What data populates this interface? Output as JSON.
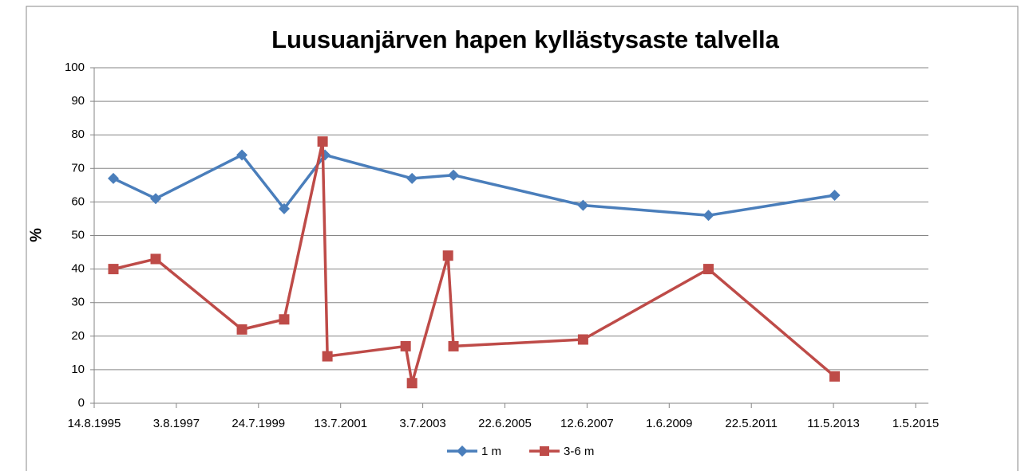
{
  "chart_data": {
    "type": "line",
    "title": "Luusuanjärven hapen kyllästysaste talvella",
    "y_label": "%",
    "xlim": [
      "1995-08-14",
      "2015-05-01"
    ],
    "xticks": [
      {
        "value": "1995-08-14",
        "label": "14.8.1995"
      },
      {
        "value": "1997-08-03",
        "label": "3.8.1997"
      },
      {
        "value": "1999-07-24",
        "label": "24.7.1999"
      },
      {
        "value": "2001-07-13",
        "label": "13.7.2001"
      },
      {
        "value": "2003-07-03",
        "label": "3.7.2003"
      },
      {
        "value": "2005-06-22",
        "label": "22.6.2005"
      },
      {
        "value": "2007-06-12",
        "label": "12.6.2007"
      },
      {
        "value": "2009-06-01",
        "label": "1.6.2009"
      },
      {
        "value": "2011-05-22",
        "label": "22.5.2011"
      },
      {
        "value": "2013-05-11",
        "label": "11.5.2013"
      },
      {
        "value": "2015-05-01",
        "label": "1.5.2015"
      }
    ],
    "ylim": [
      0,
      100
    ],
    "yticks": [
      0,
      10,
      20,
      30,
      40,
      50,
      60,
      70,
      80,
      90,
      100
    ],
    "grid": true,
    "legend": "bottom",
    "series": [
      {
        "name": "1 m",
        "color": "#4a7ebb",
        "marker": "diamond",
        "x": [
          "1996-01-29",
          "1997-02-03",
          "1999-03-01",
          "2000-03-05",
          "2001-02-26",
          "2003-03-31",
          "2004-03-28",
          "2007-05-08",
          "2010-05-11",
          "2013-05-21"
        ],
        "values": [
          67,
          61,
          74,
          58,
          74,
          67,
          68,
          59,
          56,
          62
        ]
      },
      {
        "name": "3-6 m",
        "color": "#be4b48",
        "marker": "square",
        "x": [
          "1996-01-29",
          "1997-02-03",
          "1999-03-01",
          "2000-03-05",
          "2001-02-05",
          "2001-03-19",
          "2003-02-03",
          "2003-03-31",
          "2004-02-09",
          "2004-03-28",
          "2007-05-08",
          "2010-05-11",
          "2013-05-21"
        ],
        "values": [
          40,
          43,
          22,
          25,
          78,
          14,
          17,
          6,
          44,
          17,
          19,
          40,
          8
        ]
      }
    ]
  }
}
